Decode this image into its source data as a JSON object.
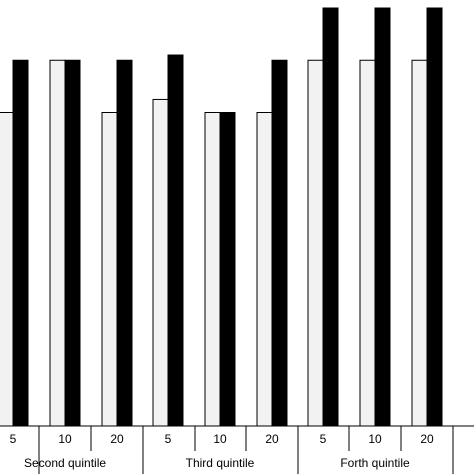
{
  "chart_data": {
    "type": "bar",
    "title": "",
    "xlabel": "",
    "ylabel": "",
    "ylim": [
      0,
      8
    ],
    "groups": [
      {
        "label": "",
        "categories": [
          "5"
        ]
      },
      {
        "label": "Second quintile",
        "categories": [
          "10",
          "20"
        ]
      },
      {
        "label": "Third quintile",
        "categories": [
          "5",
          "10",
          "20"
        ]
      },
      {
        "label": "Forth quintile",
        "categories": [
          "5",
          "10",
          "20"
        ]
      }
    ],
    "categories": [
      "5",
      "10",
      "20",
      "5",
      "10",
      "20",
      "5",
      "10",
      "20"
    ],
    "series": [
      {
        "color": "#f2f2f2",
        "values": [
          6,
          7,
          6,
          6.25,
          6,
          6,
          7,
          7,
          7
        ]
      },
      {
        "color": "#000000",
        "values": [
          7,
          7,
          7,
          7.1,
          6,
          7,
          8,
          8,
          8
        ]
      }
    ]
  }
}
